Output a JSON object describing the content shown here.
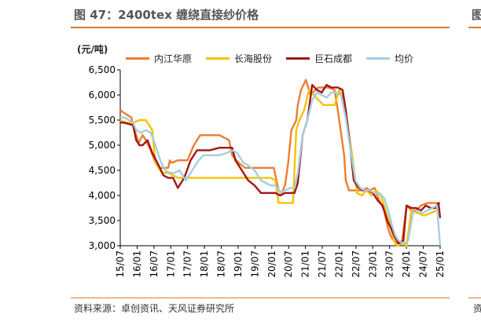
{
  "header": {
    "title": "图 47：2400tex 缠绕直接纱价格",
    "side_fragment": "图"
  },
  "footer": {
    "source": "资料来源：卓创资讯、天风证券研究所",
    "side_fragment": "资"
  },
  "chart_data": {
    "type": "line",
    "ylabel": "(元/吨)",
    "ylim": [
      3000,
      6500
    ],
    "yticks": [
      "3,000",
      "3,500",
      "4,000",
      "4,500",
      "5,000",
      "5,500",
      "6,000",
      "6,500"
    ],
    "xticks": [
      "15/07",
      "16/01",
      "16/07",
      "17/01",
      "17/07",
      "18/01",
      "18/07",
      "19/01",
      "19/07",
      "20/01",
      "20/07",
      "21/01",
      "21/07",
      "22/01",
      "22/07",
      "23/01",
      "23/07",
      "24/01",
      "24/07",
      "25/01"
    ],
    "xrange": [
      2015.5,
      2025.5
    ],
    "legend_position": "top",
    "series": [
      {
        "name": "内江华原",
        "color": "#ee7d31",
        "x": [
          2015.5,
          2015.6,
          2015.85,
          2015.9,
          2016.0,
          2016.08,
          2016.2,
          2016.3,
          2016.45,
          2016.6,
          2016.75,
          2017.0,
          2017.05,
          2017.1,
          2017.3,
          2017.6,
          2017.8,
          2018.0,
          2018.1,
          2018.3,
          2018.6,
          2018.9,
          2019.0,
          2019.2,
          2019.4,
          2019.6,
          2019.9,
          2020.0,
          2020.2,
          2020.3,
          2020.45,
          2020.55,
          2020.65,
          2020.75,
          2020.85,
          2021.0,
          2021.05,
          2021.15,
          2021.3,
          2021.45,
          2021.6,
          2021.7,
          2021.85,
          2022.0,
          2022.2,
          2022.3,
          2022.5,
          2022.55,
          2022.65,
          2022.8,
          2023.0,
          2023.1,
          2023.2,
          2023.3,
          2023.45,
          2023.6,
          2023.75,
          2023.85,
          2023.95,
          2024.05,
          2024.15,
          2024.3,
          2024.45,
          2024.6,
          2024.75,
          2024.9,
          2025.1,
          2025.3,
          2025.5
        ],
        "y": [
          5700,
          5650,
          5550,
          5400,
          5200,
          5050,
          5200,
          5100,
          4900,
          4650,
          4550,
          4550,
          4700,
          4650,
          4700,
          4700,
          5000,
          5200,
          5200,
          5200,
          5200,
          5100,
          4800,
          4650,
          4550,
          4550,
          4550,
          4550,
          4550,
          4550,
          4100,
          4050,
          4200,
          4650,
          5300,
          5500,
          5800,
          6100,
          6300,
          6000,
          6100,
          6150,
          6150,
          6150,
          6100,
          5700,
          4800,
          4300,
          4100,
          4100,
          4100,
          4100,
          4150,
          4100,
          4150,
          3900,
          3700,
          3400,
          3200,
          3100,
          3050,
          3050,
          3800,
          3700,
          3700,
          3800,
          3850,
          3850,
          3850
        ]
      },
      {
        "name": "长海股份",
        "color": "#f7c200",
        "x": [
          2015.5,
          2015.7,
          2015.9,
          2016.1,
          2016.25,
          2016.3,
          2016.5,
          2016.6,
          2016.8,
          2017.0,
          2017.3,
          2017.6,
          2017.8,
          2018.1,
          2018.4,
          2018.7,
          2019.0,
          2019.2,
          2019.5,
          2019.8,
          2020.0,
          2020.2,
          2020.35,
          2020.45,
          2020.55,
          2020.75,
          2020.9,
          2021.0,
          2021.1,
          2021.25,
          2021.4,
          2021.55,
          2021.7,
          2021.85,
          2022.0,
          2022.2,
          2022.35,
          2022.5,
          2022.6,
          2022.75,
          2022.9,
          2023.05,
          2023.2,
          2023.35,
          2023.5,
          2023.65,
          2023.8,
          2023.95,
          2024.05,
          2024.15,
          2024.35,
          2024.45,
          2024.6,
          2024.8,
          2025.0,
          2025.2,
          2025.4,
          2025.5
        ],
        "y": [
          5500,
          5450,
          5450,
          5500,
          5500,
          5500,
          5300,
          4650,
          4450,
          4450,
          4350,
          4350,
          4350,
          4350,
          4350,
          4350,
          4350,
          4350,
          4350,
          4350,
          4350,
          4350,
          4300,
          3850,
          3850,
          3850,
          3850,
          5300,
          5500,
          5700,
          6100,
          6000,
          5900,
          5800,
          5800,
          5800,
          6100,
          5900,
          5400,
          4800,
          4050,
          4000,
          4100,
          4000,
          4100,
          4000,
          3700,
          3400,
          3100,
          3000,
          3050,
          3000,
          3700,
          3650,
          3600,
          3650,
          3700,
          3750
        ]
      },
      {
        "name": "巨石成都",
        "color": "#a31515",
        "x": [
          2015.5,
          2015.6,
          2015.9,
          2016.0,
          2016.1,
          2016.2,
          2016.35,
          2016.5,
          2016.7,
          2016.85,
          2017.0,
          2017.05,
          2017.15,
          2017.3,
          2017.5,
          2017.7,
          2017.9,
          2018.1,
          2018.3,
          2018.6,
          2018.8,
          2019.0,
          2019.1,
          2019.3,
          2019.5,
          2019.7,
          2019.9,
          2020.0,
          2020.2,
          2020.35,
          2020.5,
          2020.65,
          2020.8,
          2020.95,
          2021.05,
          2021.2,
          2021.35,
          2021.5,
          2021.65,
          2021.8,
          2021.95,
          2022.1,
          2022.3,
          2022.45,
          2022.55,
          2022.65,
          2022.8,
          2022.95,
          2023.1,
          2023.25,
          2023.4,
          2023.55,
          2023.7,
          2023.85,
          2024.0,
          2024.1,
          2024.2,
          2024.35,
          2024.45,
          2024.6,
          2024.75,
          2024.9,
          2025.05,
          2025.2,
          2025.35,
          2025.45,
          2025.5
        ],
        "y": [
          5450,
          5450,
          5400,
          5100,
          5000,
          5000,
          5100,
          4850,
          4600,
          4400,
          4350,
          4350,
          4350,
          4150,
          4350,
          4700,
          4900,
          4900,
          4900,
          4950,
          4950,
          4950,
          4700,
          4500,
          4300,
          4200,
          4050,
          4050,
          4050,
          4050,
          4000,
          4050,
          4050,
          4050,
          4250,
          5200,
          5500,
          6200,
          6100,
          6050,
          6200,
          6150,
          6150,
          6100,
          5700,
          5200,
          4300,
          4150,
          4100,
          4100,
          4050,
          3900,
          3800,
          3500,
          3300,
          3150,
          3050,
          3100,
          3800,
          3750,
          3750,
          3700,
          3800,
          3750,
          3750,
          3850,
          3550
        ]
      },
      {
        "name": "均价",
        "color": "#a3cfe0",
        "x": [
          2015.5,
          2015.65,
          2015.9,
          2016.0,
          2016.15,
          2016.3,
          2016.45,
          2016.6,
          2016.75,
          2016.9,
          2017.05,
          2017.2,
          2017.35,
          2017.55,
          2017.75,
          2017.95,
          2018.1,
          2018.3,
          2018.6,
          2018.85,
          2019.0,
          2019.15,
          2019.35,
          2019.5,
          2019.7,
          2019.9,
          2020.05,
          2020.2,
          2020.35,
          2020.5,
          2020.65,
          2020.8,
          2020.95,
          2021.05,
          2021.2,
          2021.35,
          2021.5,
          2021.65,
          2021.8,
          2021.95,
          2022.1,
          2022.25,
          2022.4,
          2022.55,
          2022.7,
          2022.85,
          2023.0,
          2023.15,
          2023.3,
          2023.45,
          2023.6,
          2023.75,
          2023.9,
          2024.0,
          2024.1,
          2024.2,
          2024.35,
          2024.5,
          2024.65,
          2024.8,
          2024.95,
          2025.1,
          2025.25,
          2025.4,
          2025.5
        ],
        "y": [
          5550,
          5550,
          5450,
          5300,
          5250,
          5300,
          5250,
          5000,
          4700,
          4500,
          4450,
          4450,
          4500,
          4300,
          4500,
          4700,
          4800,
          4800,
          4800,
          4850,
          4900,
          4850,
          4650,
          4600,
          4500,
          4300,
          4250,
          4200,
          4200,
          4050,
          4100,
          4150,
          4150,
          4450,
          5200,
          5500,
          5900,
          6050,
          6000,
          5950,
          6050,
          6050,
          6000,
          5550,
          4900,
          4300,
          4150,
          4100,
          4100,
          4050,
          4050,
          3950,
          3650,
          3400,
          3200,
          3100,
          3050,
          3100,
          3650,
          3700,
          3650,
          3700,
          3750,
          3800,
          3000
        ]
      }
    ]
  }
}
